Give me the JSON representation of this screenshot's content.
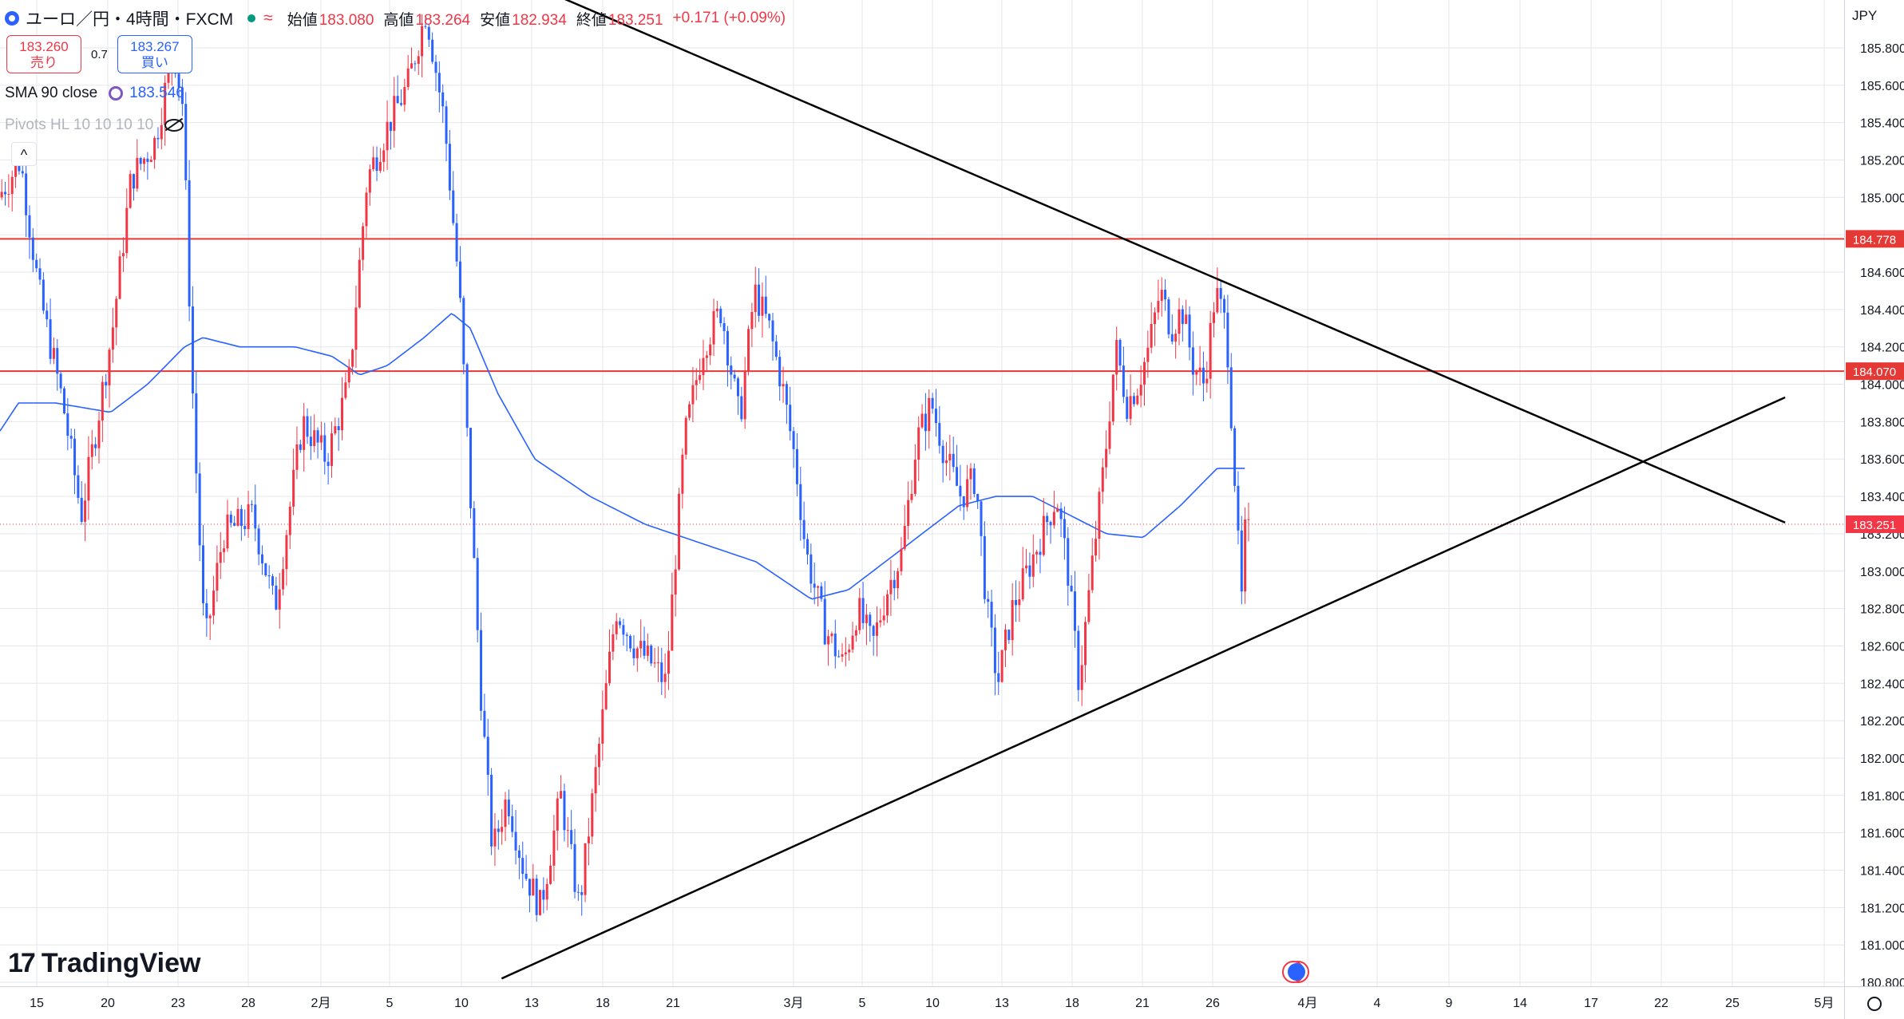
{
  "header": {
    "symbol_title": "ユーロ／円・4時間・FXCM",
    "approx_icon": "≈",
    "open_label": "始値",
    "open_value": "183.080",
    "high_label": "高値",
    "high_value": "183.264",
    "low_label": "安値",
    "low_value": "182.934",
    "close_label": "終値",
    "close_value": "183.251",
    "change": "+0.171 (+0.09%)"
  },
  "trade": {
    "sell_price": "183.260",
    "sell_label": "売り",
    "spread": "0.7",
    "buy_price": "183.267",
    "buy_label": "買い"
  },
  "indicators": {
    "sma_label": "SMA 90 close",
    "sma_value": "183.546",
    "pivots_label": "Pivots HL 10 10 10 10"
  },
  "logo_text": "TradingView",
  "currency": "JPY",
  "colors": {
    "up": "#f23645",
    "down": "#2962ff",
    "sma": "#2962ff",
    "hline": "#e53935",
    "trend": "#000000",
    "grid": "#e6e7ea"
  },
  "chart_data": {
    "type": "candlestick",
    "y_unit": "JPY",
    "ylim": [
      180.75,
      186.05
    ],
    "y_ticks": [
      "185.800",
      "185.600",
      "185.400",
      "185.200",
      "185.000",
      "184.800",
      "184.600",
      "184.400",
      "184.200",
      "184.000",
      "183.800",
      "183.600",
      "183.400",
      "183.200",
      "183.000",
      "182.800",
      "182.600",
      "182.400",
      "182.200",
      "182.000",
      "181.800",
      "181.600",
      "181.400",
      "181.200",
      "181.000",
      "180.800"
    ],
    "x_ticks": [
      "15",
      "20",
      "23",
      "28",
      "2月",
      "5",
      "10",
      "13",
      "18",
      "21",
      "3月",
      "5",
      "10",
      "13",
      "18",
      "21",
      "26",
      "4月",
      "4",
      "9",
      "14",
      "17",
      "22",
      "25",
      "5月"
    ],
    "horizontal_lines": [
      {
        "label": "184.778",
        "value": 184.778
      },
      {
        "label": "184.070",
        "value": 184.07
      }
    ],
    "current_price": {
      "label": "183.251",
      "value": 183.251
    },
    "trendlines": [
      {
        "name": "upper",
        "from": [
          0.29,
          186.13
        ],
        "to": [
          0.968,
          183.26
        ]
      },
      {
        "name": "lower",
        "from": [
          0.272,
          180.82
        ],
        "to": [
          0.968,
          183.93
        ]
      }
    ],
    "price_waypoints": [
      [
        0.0,
        185.0
      ],
      [
        0.012,
        185.2
      ],
      [
        0.022,
        184.5
      ],
      [
        0.035,
        183.9
      ],
      [
        0.045,
        183.3
      ],
      [
        0.052,
        183.7
      ],
      [
        0.062,
        184.3
      ],
      [
        0.072,
        185.1
      ],
      [
        0.085,
        185.3
      ],
      [
        0.095,
        185.8
      ],
      [
        0.1,
        185.5
      ],
      [
        0.106,
        183.8
      ],
      [
        0.112,
        182.6
      ],
      [
        0.122,
        183.2
      ],
      [
        0.138,
        183.3
      ],
      [
        0.15,
        182.8
      ],
      [
        0.165,
        183.8
      ],
      [
        0.178,
        183.6
      ],
      [
        0.19,
        184.0
      ],
      [
        0.2,
        185.1
      ],
      [
        0.212,
        185.4
      ],
      [
        0.222,
        185.6
      ],
      [
        0.232,
        186.0
      ],
      [
        0.242,
        185.4
      ],
      [
        0.25,
        184.5
      ],
      [
        0.256,
        183.4
      ],
      [
        0.262,
        182.3
      ],
      [
        0.268,
        181.5
      ],
      [
        0.276,
        181.8
      ],
      [
        0.285,
        181.4
      ],
      [
        0.294,
        181.2
      ],
      [
        0.305,
        181.8
      ],
      [
        0.315,
        181.2
      ],
      [
        0.325,
        182.0
      ],
      [
        0.335,
        182.8
      ],
      [
        0.345,
        182.6
      ],
      [
        0.355,
        182.5
      ],
      [
        0.362,
        182.4
      ],
      [
        0.372,
        183.7
      ],
      [
        0.382,
        184.2
      ],
      [
        0.392,
        184.4
      ],
      [
        0.402,
        183.8
      ],
      [
        0.41,
        184.5
      ],
      [
        0.418,
        184.3
      ],
      [
        0.425,
        184.0
      ],
      [
        0.432,
        183.6
      ],
      [
        0.438,
        183.1
      ],
      [
        0.448,
        182.7
      ],
      [
        0.458,
        182.5
      ],
      [
        0.466,
        182.8
      ],
      [
        0.474,
        182.6
      ],
      [
        0.482,
        182.9
      ],
      [
        0.49,
        183.1
      ],
      [
        0.498,
        183.7
      ],
      [
        0.506,
        183.9
      ],
      [
        0.514,
        183.6
      ],
      [
        0.522,
        183.4
      ],
      [
        0.53,
        183.5
      ],
      [
        0.536,
        182.8
      ],
      [
        0.542,
        182.4
      ],
      [
        0.55,
        182.8
      ],
      [
        0.558,
        183.0
      ],
      [
        0.566,
        183.2
      ],
      [
        0.574,
        183.4
      ],
      [
        0.58,
        183.0
      ],
      [
        0.586,
        182.4
      ],
      [
        0.594,
        183.1
      ],
      [
        0.6,
        183.6
      ],
      [
        0.606,
        184.2
      ],
      [
        0.612,
        183.9
      ],
      [
        0.618,
        184.0
      ],
      [
        0.624,
        184.2
      ],
      [
        0.63,
        184.5
      ],
      [
        0.636,
        184.3
      ],
      [
        0.642,
        184.4
      ],
      [
        0.648,
        184.1
      ],
      [
        0.654,
        184.0
      ],
      [
        0.66,
        184.5
      ],
      [
        0.666,
        184.3
      ],
      [
        0.67,
        183.6
      ],
      [
        0.674,
        182.8
      ],
      [
        0.676,
        183.2
      ],
      [
        0.678,
        183.2
      ]
    ],
    "sma90_waypoints": [
      [
        0.0,
        183.75
      ],
      [
        0.01,
        183.9
      ],
      [
        0.03,
        183.9
      ],
      [
        0.06,
        183.85
      ],
      [
        0.08,
        184.0
      ],
      [
        0.1,
        184.2
      ],
      [
        0.11,
        184.25
      ],
      [
        0.13,
        184.2
      ],
      [
        0.16,
        184.2
      ],
      [
        0.18,
        184.15
      ],
      [
        0.195,
        184.05
      ],
      [
        0.21,
        184.1
      ],
      [
        0.23,
        184.25
      ],
      [
        0.245,
        184.38
      ],
      [
        0.255,
        184.3
      ],
      [
        0.27,
        183.95
      ],
      [
        0.29,
        183.6
      ],
      [
        0.32,
        183.4
      ],
      [
        0.35,
        183.25
      ],
      [
        0.38,
        183.15
      ],
      [
        0.41,
        183.05
      ],
      [
        0.44,
        182.85
      ],
      [
        0.46,
        182.9
      ],
      [
        0.48,
        183.05
      ],
      [
        0.5,
        183.2
      ],
      [
        0.52,
        183.35
      ],
      [
        0.54,
        183.4
      ],
      [
        0.56,
        183.4
      ],
      [
        0.58,
        183.3
      ],
      [
        0.6,
        183.2
      ],
      [
        0.62,
        183.18
      ],
      [
        0.64,
        183.35
      ],
      [
        0.66,
        183.55
      ],
      [
        0.67,
        183.55
      ],
      [
        0.675,
        183.55
      ]
    ]
  }
}
